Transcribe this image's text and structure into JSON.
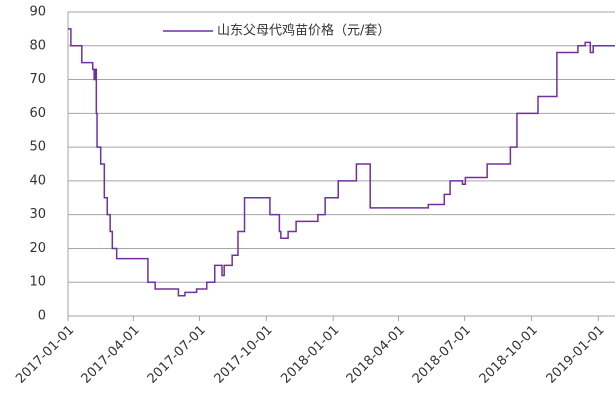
{
  "chart_data": {
    "type": "line",
    "step": "post",
    "x": [
      "2017-01-01",
      "2017-01-05",
      "2017-01-20",
      "2017-02-04",
      "2017-02-06",
      "2017-02-07",
      "2017-02-09",
      "2017-02-10",
      "2017-02-15",
      "2017-02-20",
      "2017-02-24",
      "2017-02-28",
      "2017-03-03",
      "2017-03-09",
      "2017-04-21",
      "2017-05-01",
      "2017-06-02",
      "2017-06-11",
      "2017-06-27",
      "2017-07-11",
      "2017-07-22",
      "2017-08-01",
      "2017-08-04",
      "2017-08-15",
      "2017-08-23",
      "2017-09-01",
      "2017-10-06",
      "2017-10-19",
      "2017-10-21",
      "2017-10-31",
      "2017-11-11",
      "2017-12-11",
      "2017-12-21",
      "2018-01-08",
      "2018-02-02",
      "2018-02-21",
      "2018-05-12",
      "2018-06-03",
      "2018-06-11",
      "2018-06-28",
      "2018-07-02",
      "2018-08-01",
      "2018-09-02",
      "2018-09-11",
      "2018-10-10",
      "2018-11-05",
      "2018-12-04",
      "2018-12-14",
      "2018-12-21",
      "2018-12-25",
      "2018-12-28",
      "2019-01-24"
    ],
    "series": [
      {
        "name": "山东父母代鸡苗价格（元/套）",
        "color": "#7030a0",
        "values": [
          85,
          80,
          75,
          73,
          70,
          73,
          60,
          50,
          45,
          35,
          30,
          25,
          20,
          17,
          10,
          8,
          6,
          7,
          8,
          10,
          15,
          12,
          15,
          18,
          25,
          35,
          30,
          25,
          23,
          25,
          28,
          30,
          35,
          40,
          45,
          32,
          33,
          36,
          40,
          39,
          41,
          45,
          50,
          60,
          65,
          78,
          80,
          81,
          78,
          80,
          80,
          80
        ]
      }
    ],
    "xlim": [
      "2017-01-01",
      "2019-01-24"
    ],
    "xticks": [
      "2017-01-01",
      "2017-04-01",
      "2017-07-01",
      "2017-10-01",
      "2018-01-01",
      "2018-04-01",
      "2018-07-01",
      "2018-10-01",
      "2019-01-01"
    ],
    "ylim": [
      0,
      90
    ],
    "yticks": [
      0,
      10,
      20,
      30,
      40,
      50,
      60,
      70,
      80,
      90
    ],
    "grid": true
  }
}
